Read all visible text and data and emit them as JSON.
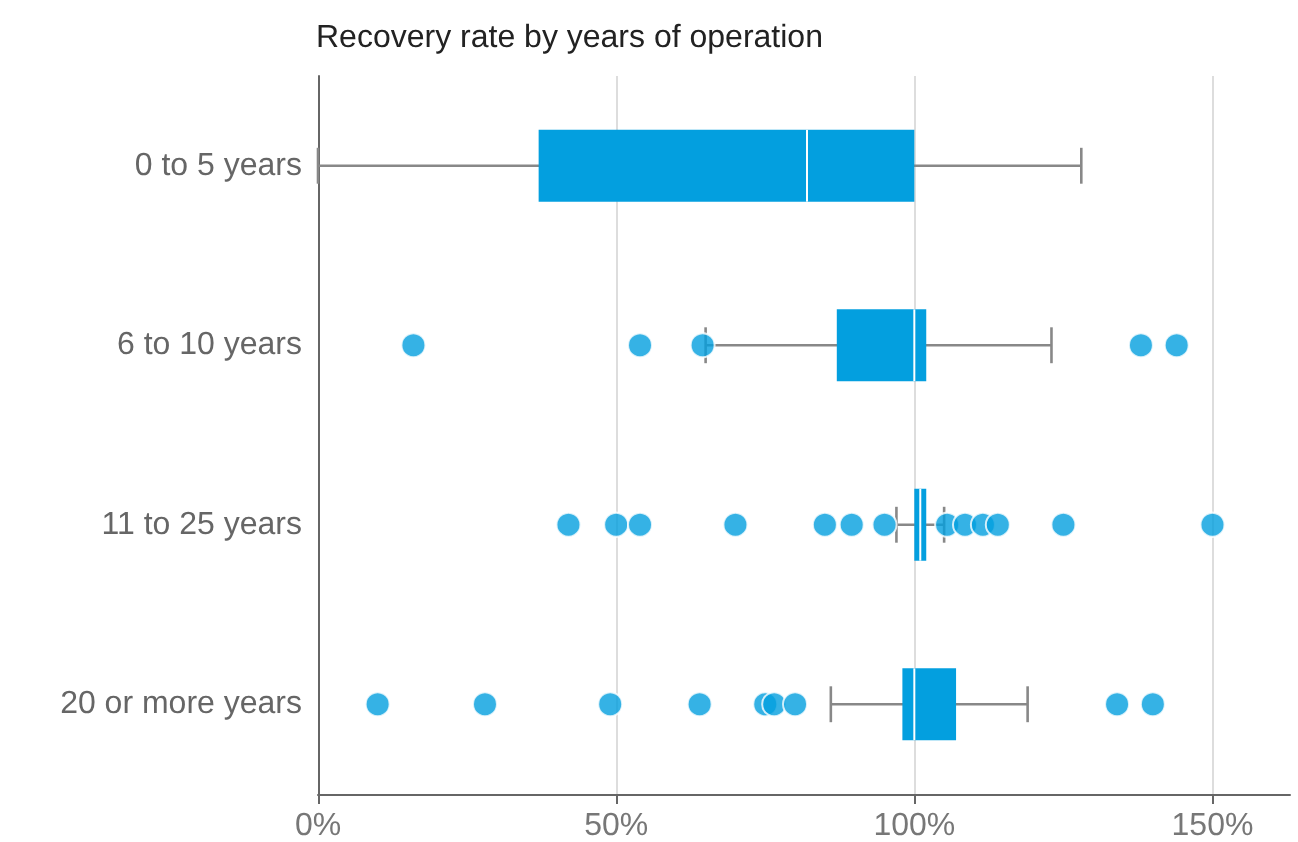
{
  "chart_data": {
    "type": "box",
    "title": "Recovery rate by years of operation",
    "orientation": "horizontal",
    "categories": [
      "0 to 5 years",
      "6 to 10 years",
      "11 to 25 years",
      "20 or more years"
    ],
    "series": [
      {
        "color": "#039fdf",
        "boxes": [
          {
            "low": 0,
            "q1": 37,
            "median": 82,
            "q3": 100,
            "high": 128
          },
          {
            "low": 65,
            "q1": 87,
            "median": 100,
            "q3": 102,
            "high": 123,
            "outliers": [
              16,
              54,
              64.5,
              138,
              144
            ]
          },
          {
            "low": 97,
            "q1": 100,
            "median": 101,
            "q3": 102,
            "high": 105,
            "outliers": [
              42,
              50,
              54,
              70,
              85,
              89.5,
              95,
              105.5,
              108.5,
              111.5,
              114,
              125,
              150
            ]
          },
          {
            "low": 86,
            "q1": 98,
            "median": 100,
            "q3": 107,
            "high": 119,
            "outliers": [
              10,
              28,
              49,
              64,
              75,
              76.5,
              80,
              134,
              140
            ]
          }
        ]
      }
    ],
    "xlim": [
      0,
      163
    ],
    "xticks": [
      {
        "value": 0,
        "label": "0%"
      },
      {
        "value": 50,
        "label": "50%"
      },
      {
        "value": 100,
        "label": "100%"
      },
      {
        "value": 150,
        "label": "150%"
      }
    ],
    "grid": "x"
  }
}
